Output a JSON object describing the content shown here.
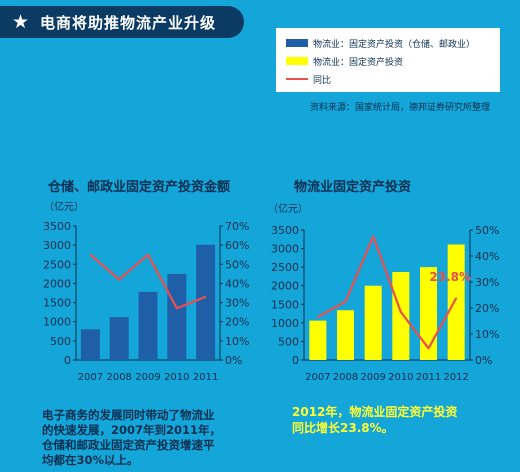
{
  "header": {
    "title": "电商将助推物流产业升级",
    "icon": "star-icon"
  },
  "legend": {
    "items": [
      {
        "label": "物流业：固定资产投资（仓储、邮政业）",
        "color": "#1f5fa8",
        "kind": "bar"
      },
      {
        "label": "物流业：固定资产投资",
        "color": "#ffff00",
        "kind": "bar"
      },
      {
        "label": "同比",
        "color": "#e8504f",
        "kind": "line"
      }
    ]
  },
  "source": "资料来源：国家统计局，德邦证券研究所整理",
  "chart_data": [
    {
      "type": "bar",
      "title": "仓储、邮政业固定资产投资金额",
      "unit_left": "（亿元）",
      "categories": [
        "2007",
        "2008",
        "2009",
        "2010",
        "2011"
      ],
      "series": [
        {
          "name": "物流业：固定资产投资（仓储、邮政业）",
          "kind": "bar",
          "axis": "left",
          "color": "#1f5fa8",
          "values": [
            800,
            1120,
            1780,
            2250,
            3010
          ]
        },
        {
          "name": "同比",
          "kind": "line",
          "axis": "right",
          "color": "#e8504f",
          "values": [
            0.55,
            0.42,
            0.55,
            0.27,
            0.33
          ]
        }
      ],
      "y_left": {
        "min": 0,
        "max": 3500,
        "ticks": [
          "0",
          "500",
          "1000",
          "1500",
          "2000",
          "2500",
          "3000",
          "3500"
        ]
      },
      "y_right": {
        "min": 0,
        "max": 0.7,
        "ticks": [
          "0%",
          "10%",
          "20%",
          "30%",
          "40%",
          "50%",
          "60%",
          "70%"
        ]
      }
    },
    {
      "type": "bar",
      "title": "物流业固定资产投资",
      "unit_left": "（亿元）",
      "categories": [
        "2007",
        "2008",
        "2009",
        "2010",
        "2011",
        "2012"
      ],
      "series": [
        {
          "name": "物流业：固定资产投资",
          "kind": "bar",
          "axis": "left",
          "color": "#ffff00",
          "values": [
            1060,
            1340,
            2000,
            2370,
            2500,
            3110
          ]
        },
        {
          "name": "同比",
          "kind": "line",
          "axis": "right",
          "color": "#e8504f",
          "values": [
            0.165,
            0.225,
            0.475,
            0.185,
            0.045,
            0.238
          ]
        }
      ],
      "y_left": {
        "min": 0,
        "max": 3500,
        "ticks": [
          "0",
          "500",
          "1000",
          "1500",
          "2000",
          "2500",
          "3000",
          "3500"
        ]
      },
      "y_right": {
        "min": 0,
        "max": 0.5,
        "ticks": [
          "0%",
          "10%",
          "20%",
          "30%",
          "40%",
          "50%"
        ]
      },
      "annotation": {
        "text": "23.8%",
        "category": "2012"
      }
    }
  ],
  "notes": {
    "left": [
      "电子商务的发展同时带动了物流业",
      "的快速发展，2007年到2011年，",
      "仓储和邮政业固定资产投资增速平",
      "均都在30%以上。"
    ],
    "right": [
      "2012年，物流业固定资产投资",
      "同比增长23.8%。"
    ]
  }
}
